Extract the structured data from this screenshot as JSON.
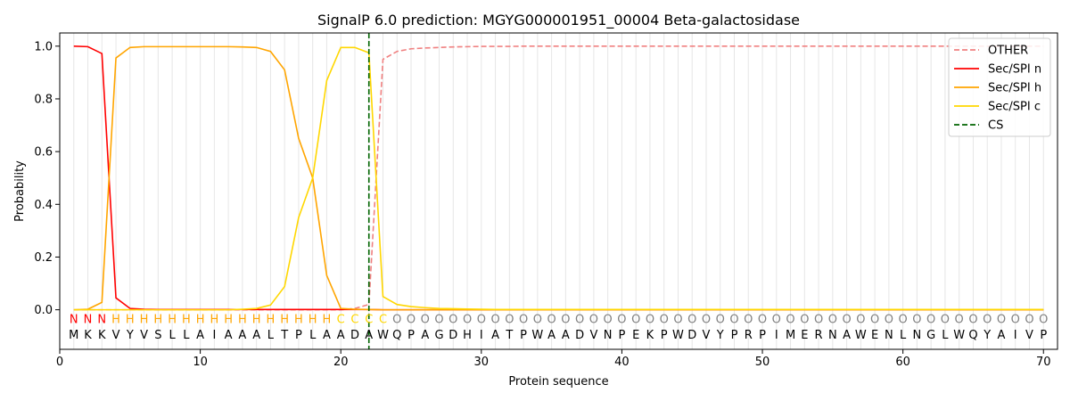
{
  "chart_data": {
    "type": "line",
    "title": "SignalP 6.0 prediction: MGYG000001951_00004 Beta-galactosidase",
    "xlabel": "Protein sequence",
    "ylabel": "Probability",
    "xlim": [
      0,
      71
    ],
    "ylim": [
      -0.15,
      1.05
    ],
    "xticks": [
      0,
      10,
      20,
      30,
      40,
      50,
      60,
      70
    ],
    "yticks": [
      0.0,
      0.2,
      0.4,
      0.6,
      0.8,
      1.0
    ],
    "ytick_labels": [
      "0.0",
      "0.2",
      "0.4",
      "0.6",
      "0.8",
      "1.0"
    ],
    "grid": "vertical lines at each residue",
    "legend_position": "top-right",
    "sequence": "MKKVYVSLLAIAAALTPLAADAWQPAGDHIATPWAADVNPEKPWDVYPRPIMERNAWENLNGLWQYAIVP",
    "labels": "NNNHHHHHHHHHHHHHHHHCCCCOOOOOOOOOOOOOOOOOOOOOOOOOOOOOOOOOOOOOOOOOOOOOOOO",
    "label_colors": {
      "N": "#ff0000",
      "H": "#ffa500",
      "C": "#ffd700",
      "O": "#808080"
    },
    "series": [
      {
        "name": "OTHER",
        "color": "#f08080",
        "dash": true,
        "values": [
          0.0,
          0.0,
          0.0,
          0.0,
          0.0,
          0.0,
          0.0,
          0.0,
          0.0,
          0.0,
          0.0,
          0.0,
          0.0,
          0.0,
          0.0,
          0.0,
          0.0,
          0.0,
          0.0,
          0.0,
          0.005,
          0.02,
          0.95,
          0.98,
          0.99,
          0.993,
          0.995,
          0.997,
          0.998,
          0.999,
          0.999,
          0.999,
          1.0,
          1.0,
          1.0,
          1.0,
          1.0,
          1.0,
          1.0,
          1.0,
          1.0,
          1.0,
          1.0,
          1.0,
          1.0,
          1.0,
          1.0,
          1.0,
          1.0,
          1.0,
          1.0,
          1.0,
          1.0,
          1.0,
          1.0,
          1.0,
          1.0,
          1.0,
          1.0,
          1.0,
          1.0,
          1.0,
          1.0,
          1.0,
          1.0,
          1.0,
          1.0,
          1.0,
          1.0,
          1.0
        ]
      },
      {
        "name": "Sec/SPI n",
        "color": "#ff0000",
        "dash": false,
        "values": [
          1.0,
          0.998,
          0.972,
          0.045,
          0.005,
          0.002,
          0.001,
          0.001,
          0.001,
          0.001,
          0.001,
          0.001,
          0.001,
          0.001,
          0.001,
          0.001,
          0.001,
          0.001,
          0.001,
          0.001,
          0.001,
          0.001,
          0.0,
          0.0,
          0.0,
          0.0,
          0.0,
          0.0,
          0.0,
          0.0,
          0.0,
          0.0,
          0.0,
          0.0,
          0.0,
          0.0,
          0.0,
          0.0,
          0.0,
          0.0,
          0.0,
          0.0,
          0.0,
          0.0,
          0.0,
          0.0,
          0.0,
          0.0,
          0.0,
          0.0,
          0.0,
          0.0,
          0.0,
          0.0,
          0.0,
          0.0,
          0.0,
          0.0,
          0.0,
          0.0,
          0.0,
          0.0,
          0.0,
          0.0,
          0.0,
          0.0,
          0.0,
          0.0,
          0.0,
          0.0
        ]
      },
      {
        "name": "Sec/SPI h",
        "color": "#ffa500",
        "dash": false,
        "values": [
          0.0,
          0.002,
          0.028,
          0.955,
          0.995,
          0.998,
          0.998,
          0.998,
          0.998,
          0.998,
          0.998,
          0.998,
          0.997,
          0.995,
          0.98,
          0.91,
          0.65,
          0.5,
          0.13,
          0.005,
          0.002,
          0.001,
          0.0,
          0.0,
          0.0,
          0.0,
          0.0,
          0.0,
          0.0,
          0.0,
          0.0,
          0.0,
          0.0,
          0.0,
          0.0,
          0.0,
          0.0,
          0.0,
          0.0,
          0.0,
          0.0,
          0.0,
          0.0,
          0.0,
          0.0,
          0.0,
          0.0,
          0.0,
          0.0,
          0.0,
          0.0,
          0.0,
          0.0,
          0.0,
          0.0,
          0.0,
          0.0,
          0.0,
          0.0,
          0.0,
          0.0,
          0.0,
          0.0,
          0.0,
          0.0,
          0.0,
          0.0,
          0.0,
          0.0,
          0.0
        ]
      },
      {
        "name": "Sec/SPI c",
        "color": "#ffd700",
        "dash": false,
        "values": [
          0.0,
          0.0,
          0.0,
          0.0,
          0.0,
          0.0,
          0.0,
          0.0,
          0.0,
          0.0,
          0.0,
          0.0,
          0.002,
          0.005,
          0.018,
          0.088,
          0.35,
          0.5,
          0.87,
          0.995,
          0.995,
          0.975,
          0.05,
          0.02,
          0.012,
          0.008,
          0.005,
          0.004,
          0.003,
          0.002,
          0.001,
          0.001,
          0.001,
          0.001,
          0.001,
          0.001,
          0.001,
          0.001,
          0.001,
          0.001,
          0.001,
          0.001,
          0.001,
          0.001,
          0.001,
          0.001,
          0.001,
          0.001,
          0.001,
          0.001,
          0.001,
          0.001,
          0.001,
          0.001,
          0.001,
          0.001,
          0.001,
          0.001,
          0.001,
          0.001,
          0.001,
          0.001,
          0.001,
          0.001,
          0.001,
          0.001,
          0.001,
          0.001,
          0.001,
          0.001
        ]
      }
    ],
    "cleavage_site": {
      "name": "CS",
      "x": 22,
      "color": "#006400"
    }
  }
}
